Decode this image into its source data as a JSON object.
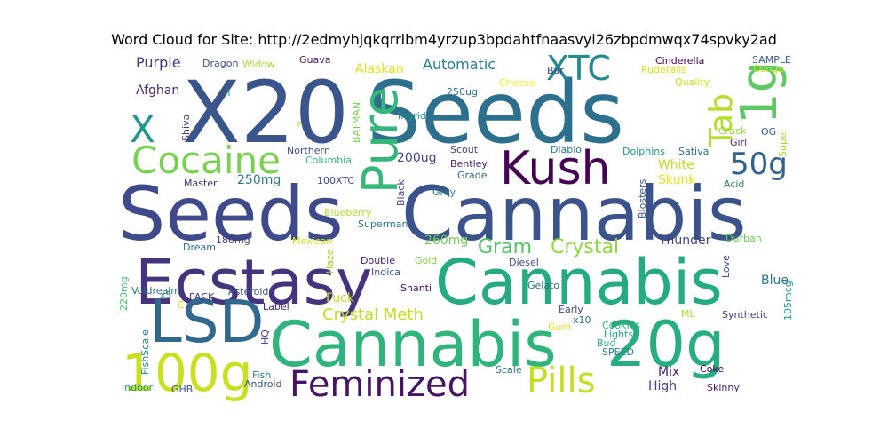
{
  "title": "Word Cloud for Site: http://2edmyhjqkqrrlbm4yrzup3bpdahtfnaasvyi26zbpdmwqx74spvky2ad",
  "words": [
    {
      "text": "X20",
      "color": "#3a548c"
    },
    {
      "text": "Seeds",
      "color": "#2d708e"
    },
    {
      "text": "Seeds",
      "color": "#3e4a89"
    },
    {
      "text": "Cannabis",
      "color": "#3b528b"
    },
    {
      "text": "Ecstasy",
      "color": "#46337e"
    },
    {
      "text": "Cannabis",
      "color": "#25ab82"
    },
    {
      "text": "Cannabis",
      "color": "#2fb47c"
    },
    {
      "text": "LSD",
      "color": "#31688e"
    },
    {
      "text": "20g",
      "color": "#27ad81"
    },
    {
      "text": "100g",
      "color": "#c8e020"
    },
    {
      "text": "Kush",
      "color": "#440154"
    },
    {
      "text": "Cocaine",
      "color": "#7ad151"
    },
    {
      "text": "Pure",
      "color": "#35b779"
    },
    {
      "text": "XTC",
      "color": "#238a8d"
    },
    {
      "text": "Feminized",
      "color": "#471365"
    },
    {
      "text": "Pills",
      "color": "#c2df23"
    },
    {
      "text": "1g",
      "color": "#5ec962"
    },
    {
      "text": "Tab",
      "color": "#b5de2b"
    },
    {
      "text": "50g",
      "color": "#33638d"
    },
    {
      "text": "X",
      "color": "#1f988b"
    },
    {
      "text": "Crystal",
      "color": "#8fd744"
    },
    {
      "text": "Gram",
      "color": "#52c569"
    },
    {
      "text": "Crystal Meth",
      "color": "#c0df25"
    },
    {
      "text": "Automatic",
      "color": "#287d8e"
    },
    {
      "text": "Purple",
      "color": "#443983"
    },
    {
      "text": "Afghan",
      "color": "#482677"
    },
    {
      "text": "Alaskan",
      "color": "#dde318"
    },
    {
      "text": "200ug",
      "color": "#404688"
    },
    {
      "text": "Blue",
      "color": "#2c728e"
    },
    {
      "text": "Thunder",
      "color": "#424086"
    },
    {
      "text": "White",
      "color": "#b8de29"
    },
    {
      "text": "Skunk",
      "color": "#e5e419"
    },
    {
      "text": "250mg",
      "color": "#2a788e"
    },
    {
      "text": "260mg",
      "color": "#6ccd5a"
    },
    {
      "text": "Fuck",
      "color": "#c0df25"
    },
    {
      "text": "Mix",
      "color": "#482173"
    },
    {
      "text": "High",
      "color": "#414487"
    },
    {
      "text": "Dragon",
      "color": "#3b528b"
    },
    {
      "text": "Widow",
      "color": "#a8db34"
    },
    {
      "text": "Guava",
      "color": "#48186a"
    },
    {
      "text": "Cinderella",
      "color": "#440154"
    },
    {
      "text": "Ruderalis",
      "color": "#d8e219"
    },
    {
      "text": "SAMPLE",
      "color": "#365c8d"
    },
    {
      "text": "Congo",
      "color": "#c8e020"
    },
    {
      "text": "Bar",
      "color": "#3e4989"
    },
    {
      "text": "Cheese",
      "color": "#fde725"
    },
    {
      "text": "Quality",
      "color": "#d0e11c"
    },
    {
      "text": "250ug",
      "color": "#2c728e"
    },
    {
      "text": "II",
      "color": "#20a386"
    },
    {
      "text": "Ingrid",
      "color": "#21918c"
    },
    {
      "text": "Shiva",
      "color": "#443a83"
    },
    {
      "text": "BATMAN",
      "color": "#7ad151"
    },
    {
      "text": "F",
      "color": "#b5de2b"
    },
    {
      "text": "Northern",
      "color": "#3b528b"
    },
    {
      "text": "Columbia",
      "color": "#35b779"
    },
    {
      "text": "Scout",
      "color": "#3f4788"
    },
    {
      "text": "Bentley",
      "color": "#481f70"
    },
    {
      "text": "Grade",
      "color": "#31688e"
    },
    {
      "text": "Diablo",
      "color": "#2a788e"
    },
    {
      "text": "Dolphins",
      "color": "#1f988b"
    },
    {
      "text": "Sativa",
      "color": "#2d708e"
    },
    {
      "text": "Crack",
      "color": "#8fd744"
    },
    {
      "text": "Girl",
      "color": "#482878"
    },
    {
      "text": "OG",
      "color": "#39568c"
    },
    {
      "text": "Super",
      "color": "#9fda3a"
    },
    {
      "text": "Acid",
      "color": "#2a788e"
    },
    {
      "text": "Master",
      "color": "#472d7b"
    },
    {
      "text": "100XTC",
      "color": "#3e4989"
    },
    {
      "text": "Black",
      "color": "#404688"
    },
    {
      "text": "Grey",
      "color": "#287d8e"
    },
    {
      "text": "Blosters",
      "color": "#38588c"
    },
    {
      "text": "Blueberry",
      "color": "#addc30"
    },
    {
      "text": "Superman",
      "color": "#2a788e"
    },
    {
      "text": "Dream",
      "color": "#2d708e"
    },
    {
      "text": "180mg",
      "color": "#453882"
    },
    {
      "text": "Mexican",
      "color": "#d0e11c"
    },
    {
      "text": "Haze",
      "color": "#9fda3a"
    },
    {
      "text": "Double",
      "color": "#482475"
    },
    {
      "text": "Indica",
      "color": "#39568c"
    },
    {
      "text": "Diesel",
      "color": "#3e4989"
    },
    {
      "text": "Gelato",
      "color": "#2c728e"
    },
    {
      "text": "Durban",
      "color": "#6ccd5a"
    },
    {
      "text": "PACK",
      "color": "#453581"
    },
    {
      "text": "x5",
      "color": "#2a788e"
    },
    {
      "text": "Voidrealm",
      "color": "#2c728e"
    },
    {
      "text": "Asteroid",
      "color": "#3b528b"
    },
    {
      "text": "Gold",
      "color": "#84d44b"
    },
    {
      "text": "Shanti",
      "color": "#471365"
    },
    {
      "text": "220mg",
      "color": "#4ac16d"
    },
    {
      "text": "C",
      "color": "#dde318"
    },
    {
      "text": "Label",
      "color": "#482475"
    },
    {
      "text": "Early",
      "color": "#3f4788"
    },
    {
      "text": "x10",
      "color": "#2a788e"
    },
    {
      "text": "Gum",
      "color": "#d8e219"
    },
    {
      "text": "Cookies",
      "color": "#2db27d"
    },
    {
      "text": "Lights",
      "color": "#1fa187"
    },
    {
      "text": "Bud",
      "color": "#2db27d"
    },
    {
      "text": "SPEED",
      "color": "#26828e"
    },
    {
      "text": "ML",
      "color": "#addc30"
    },
    {
      "text": "Synthetic",
      "color": "#453882"
    },
    {
      "text": "Love",
      "color": "#3f4788"
    },
    {
      "text": "105mcg",
      "color": "#1fa187"
    },
    {
      "text": "FishScale",
      "color": "#26828e"
    },
    {
      "text": "HQ",
      "color": "#3f4788"
    },
    {
      "text": "Fish",
      "color": "#26828e"
    },
    {
      "text": "Android",
      "color": "#3b528b"
    },
    {
      "text": "Indoor",
      "color": "#21918c"
    },
    {
      "text": "GHB",
      "color": "#3b528b"
    },
    {
      "text": "Scale",
      "color": "#2c728e"
    },
    {
      "text": "Coke",
      "color": "#440154"
    },
    {
      "text": "Skinny",
      "color": "#481f70"
    }
  ]
}
